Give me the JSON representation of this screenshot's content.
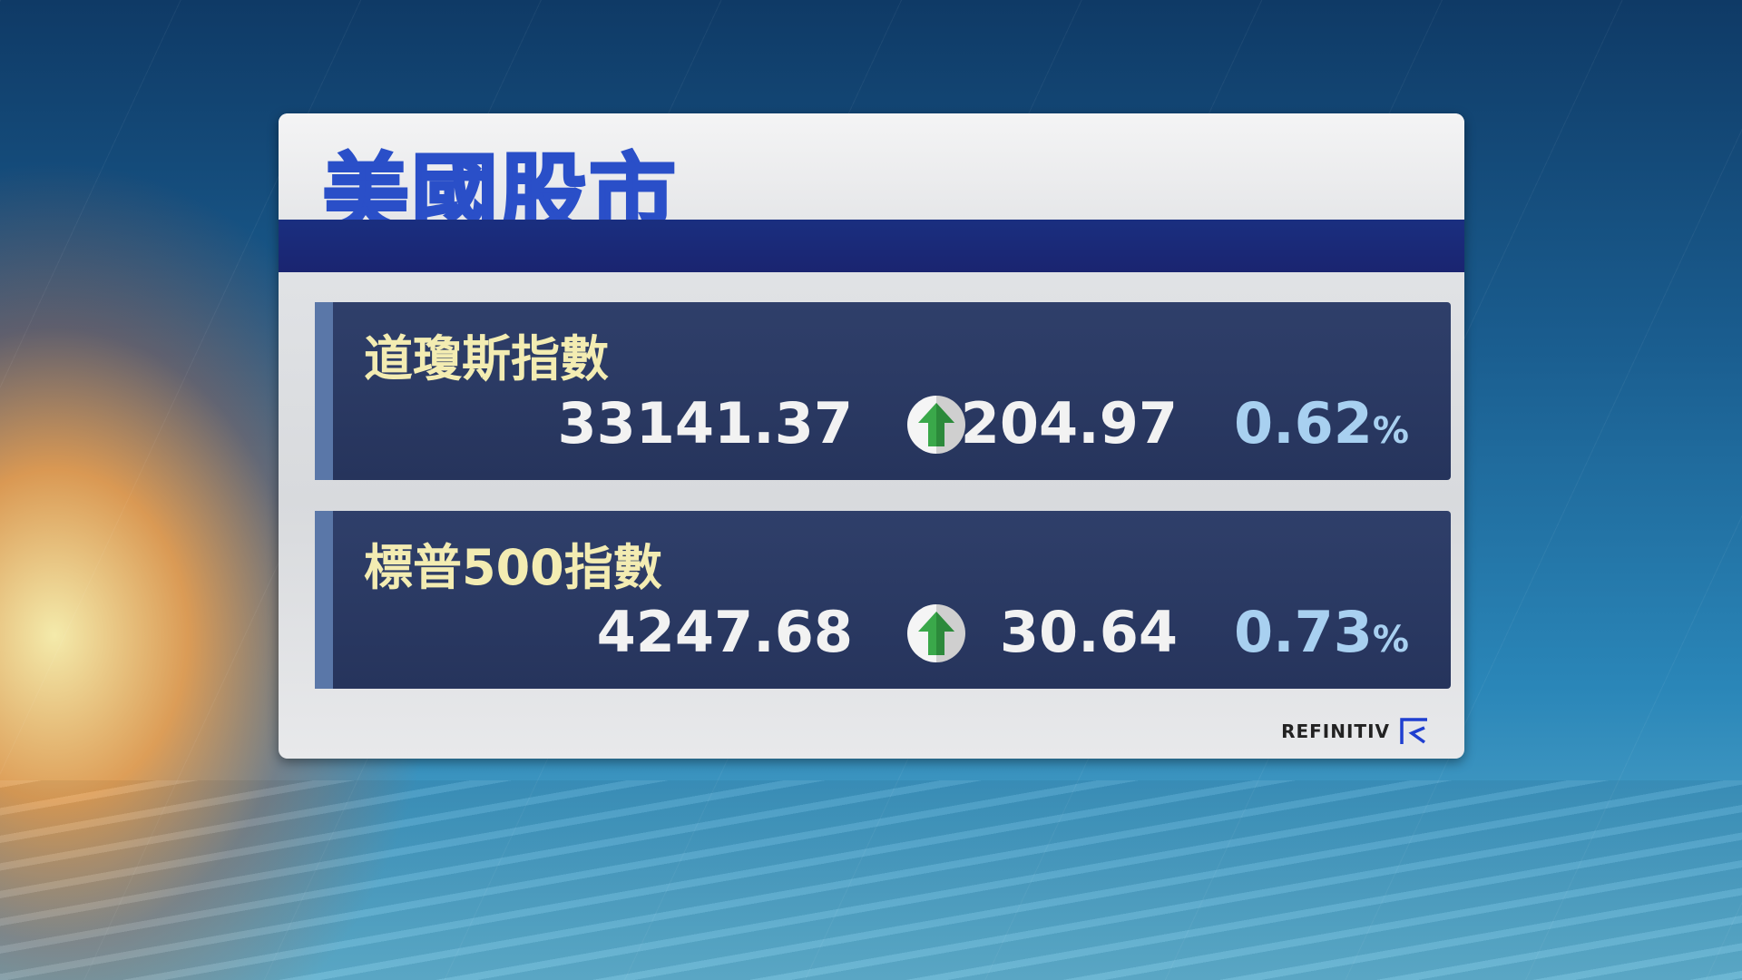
{
  "title": "美國股市",
  "indices": [
    {
      "name": "道瓊斯指數",
      "close": "33141.37",
      "direction": "up",
      "change": "204.97",
      "percent": "0.62",
      "percent_symbol": "%"
    },
    {
      "name": "標普500指數",
      "close": "4247.68",
      "direction": "up",
      "change": "30.64",
      "percent": "0.73",
      "percent_symbol": "%"
    }
  ],
  "source": "REFINITIV",
  "colors": {
    "title": "#2a4fc8",
    "label": "#f3ecb2",
    "percent": "#a8d0f0",
    "up": "#3aa84a",
    "panel_band": "#1a2f80"
  }
}
